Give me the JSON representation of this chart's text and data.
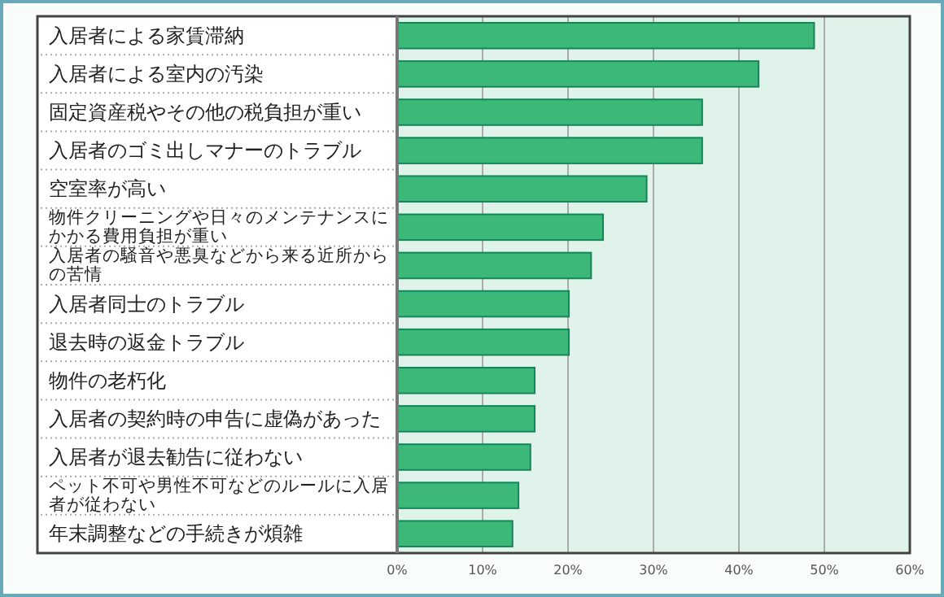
{
  "chart_data": {
    "type": "bar",
    "orientation": "horizontal",
    "categories": [
      "入居者による家賃滞納",
      "入居者による室内の汚染",
      "固定資産税やその他の税負担が重い",
      "入居者のゴミ出しマナーのトラブル",
      "空室率が高い",
      "物件クリーニングや日々のメンテナンスにかかる費用負担が重い",
      "入居者の騒音や悪臭などから来る近所からの苦情",
      "入居者同士のトラブル",
      "退去時の返金トラブル",
      "物件の老朽化",
      "入居者の契約時の申告に虚偽があった",
      "入居者が退去勧告に従わない",
      "ペット不可や男性不可などのルールに入居者が従わない",
      "年末調整などの手続きが煩雑"
    ],
    "values": [
      48.8,
      42.3,
      35.7,
      35.7,
      29.2,
      24.1,
      22.7,
      20.1,
      20.1,
      16.1,
      16.1,
      15.6,
      14.2,
      13.5
    ],
    "color": "#3cb878",
    "xlim": [
      0,
      60
    ],
    "xticks": [
      {
        "value": 0,
        "label": "0%"
      },
      {
        "value": 10,
        "label": "10%"
      },
      {
        "value": 20,
        "label": "20%"
      },
      {
        "value": 30,
        "label": "30%"
      },
      {
        "value": 40,
        "label": "40%"
      },
      {
        "value": 50,
        "label": "50%"
      },
      {
        "value": 60,
        "label": "60%"
      }
    ],
    "grid": "x"
  }
}
